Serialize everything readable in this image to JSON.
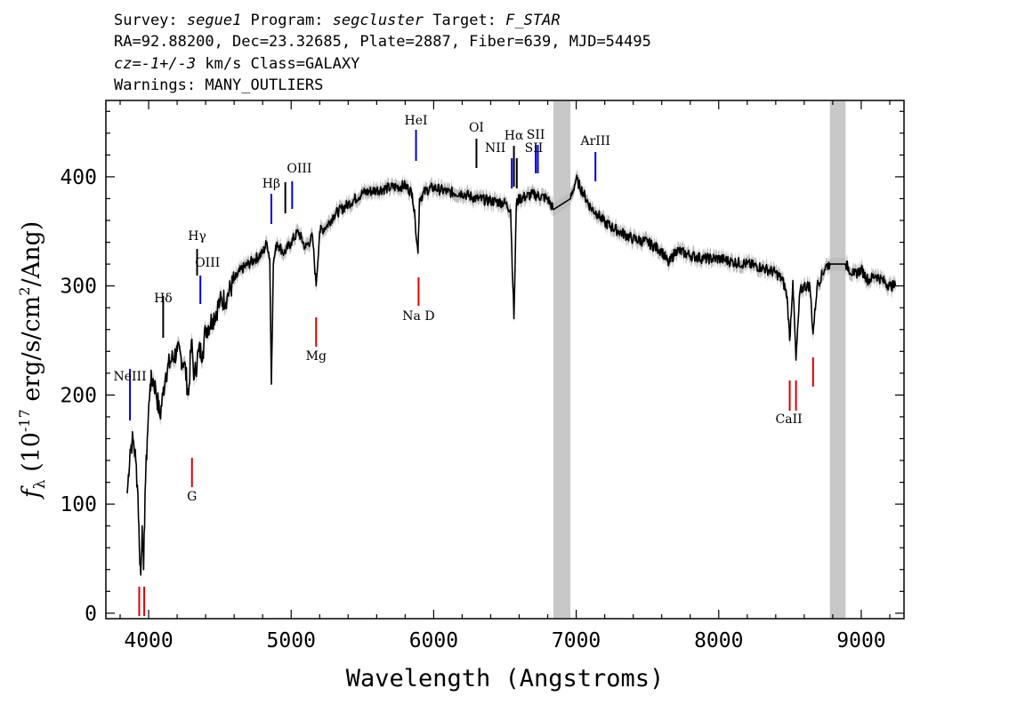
{
  "header": {
    "line1": [
      {
        "t": "Survey: ",
        "i": false
      },
      {
        "t": "segue1",
        "i": true
      },
      {
        "t": " Program: ",
        "i": false
      },
      {
        "t": "segcluster",
        "i": true
      },
      {
        "t": " Target: ",
        "i": false
      },
      {
        "t": "F_STAR",
        "i": true
      }
    ],
    "line2": "RA=92.88200, Dec=23.32685, Plate=2887, Fiber=639, MJD=54495",
    "line3": [
      {
        "t": "cz=-1+/-3",
        "i": true
      },
      {
        "t": " km/s Class=GALAXY",
        "i": false
      }
    ],
    "line4": "Warnings: MANY_OUTLIERS"
  },
  "chart_data": {
    "type": "line",
    "xlabel": "Wavelength (Angstroms)",
    "ylabel": {
      "f": "f",
      "sub": "λ",
      "rest1": " (10",
      "sup1": "-17",
      "rest2": " erg/s/cm",
      "sup2": "2",
      "rest3": "/Ang)"
    },
    "xlim": [
      3700,
      9300
    ],
    "ylim": [
      -5,
      470
    ],
    "x_ticks": [
      4000,
      5000,
      6000,
      7000,
      8000,
      9000
    ],
    "y_ticks": [
      0,
      100,
      200,
      300,
      400
    ],
    "grid": false,
    "colors": {
      "flux": "#000000",
      "error": "#bdbdbd",
      "masked": "#c8c8c8",
      "emission": "#0000dd",
      "absorption": "#dd0000"
    },
    "masked_regions": [
      [
        6840,
        6960
      ],
      [
        8780,
        8890
      ]
    ],
    "spectrum": {
      "x": [
        3850,
        3870,
        3890,
        3910,
        3925,
        3935,
        3945,
        3955,
        3965,
        3975,
        3990,
        4010,
        4030,
        4050,
        4080,
        4100,
        4120,
        4150,
        4200,
        4250,
        4280,
        4300,
        4320,
        4350,
        4380,
        4400,
        4450,
        4500,
        4550,
        4600,
        4650,
        4700,
        4750,
        4800,
        4830,
        4850,
        4861,
        4875,
        4900,
        4950,
        5000,
        5050,
        5100,
        5150,
        5175,
        5200,
        5250,
        5300,
        5400,
        5500,
        5600,
        5700,
        5800,
        5850,
        5870,
        5890,
        5900,
        5950,
        6000,
        6100,
        6200,
        6300,
        6400,
        6500,
        6540,
        6563,
        6580,
        6600,
        6650,
        6700,
        6800,
        6840,
        6960,
        7000,
        7050,
        7100,
        7150,
        7200,
        7300,
        7400,
        7500,
        7600,
        7650,
        7700,
        7800,
        7900,
        8000,
        8100,
        8200,
        8300,
        8400,
        8450,
        8480,
        8498,
        8520,
        8542,
        8570,
        8600,
        8640,
        8662,
        8690,
        8750,
        8780,
        8890,
        8950,
        9000,
        9050,
        9100,
        9150,
        9200,
        9240
      ],
      "y": [
        110,
        150,
        160,
        140,
        110,
        60,
        35,
        80,
        40,
        110,
        160,
        210,
        215,
        205,
        180,
        200,
        220,
        230,
        240,
        230,
        200,
        250,
        215,
        240,
        240,
        260,
        270,
        285,
        290,
        305,
        315,
        320,
        325,
        330,
        340,
        325,
        210,
        320,
        340,
        330,
        340,
        350,
        335,
        345,
        300,
        350,
        355,
        365,
        375,
        385,
        388,
        390,
        392,
        385,
        360,
        330,
        380,
        388,
        390,
        386,
        385,
        380,
        378,
        376,
        370,
        270,
        375,
        380,
        382,
        384,
        380,
        370,
        380,
        398,
        385,
        372,
        366,
        358,
        350,
        343,
        340,
        332,
        320,
        333,
        328,
        325,
        325,
        322,
        320,
        317,
        312,
        305,
        290,
        250,
        305,
        232,
        295,
        300,
        300,
        256,
        300,
        318,
        320,
        320,
        310,
        315,
        305,
        310,
        305,
        300,
        300
      ]
    },
    "emission_lines": [
      {
        "label": "NeIII",
        "x": 3869
      },
      {
        "label": "Hδ",
        "x": 4102
      },
      {
        "label": "Hγ",
        "x": 4340
      },
      {
        "label": "OIII",
        "x": 4363
      },
      {
        "label": "Hβ",
        "x": 4861
      },
      {
        "label": "OIII",
        "x": 4959
      },
      {
        "label": "OIII",
        "x": 5007
      },
      {
        "label": "HeI",
        "x": 5876
      },
      {
        "label": "OI",
        "x": 6300
      },
      {
        "label": "NII",
        "x": 6548
      },
      {
        "label": "Hα",
        "x": 6563
      },
      {
        "label": "NII",
        "x": 6583
      },
      {
        "label": "SII",
        "x": 6716
      },
      {
        "label": "SII",
        "x": 6731
      },
      {
        "label": "ArIII",
        "x": 7135
      }
    ],
    "absorption_lines": [
      {
        "label": "",
        "x": 3934
      },
      {
        "label": "",
        "x": 3969
      },
      {
        "label": "G",
        "x": 4304
      },
      {
        "label": "Mg",
        "x": 5175
      },
      {
        "label": "Na D",
        "x": 5894
      },
      {
        "label": "CaII",
        "x": 8498
      },
      {
        "label": "CaII",
        "x": 8542
      },
      {
        "label": "CaII",
        "x": 8662
      }
    ]
  }
}
